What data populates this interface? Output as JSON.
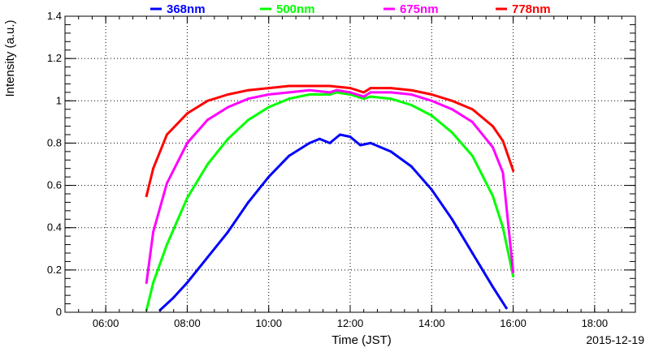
{
  "chart_data": {
    "type": "line",
    "title": "",
    "xlabel": "Time (JST)",
    "ylabel": "Intensity (a.u.)",
    "date_label": "2015-12-19",
    "xlim": [
      "05:00",
      "19:00"
    ],
    "ylim": [
      0,
      1.4
    ],
    "x_tick_labels": [
      "06:00",
      "08:00",
      "10:00",
      "12:00",
      "14:00",
      "16:00",
      "18:00"
    ],
    "y_tick_labels": [
      "0",
      "0.2",
      "0.4",
      "0.6",
      "0.8",
      "1",
      "1.2",
      "1.4"
    ],
    "grid": true,
    "grid_style": "dotted",
    "legend_position": "top",
    "series": [
      {
        "name": "368nm",
        "color": "#0000ff",
        "x": [
          "07:20",
          "07:40",
          "08:00",
          "08:30",
          "09:00",
          "09:30",
          "10:00",
          "10:30",
          "11:00",
          "11:15",
          "11:30",
          "11:45",
          "12:00",
          "12:15",
          "12:30",
          "13:00",
          "13:30",
          "14:00",
          "14:30",
          "15:00",
          "15:30",
          "15:50"
        ],
        "y": [
          0.01,
          0.07,
          0.14,
          0.26,
          0.38,
          0.52,
          0.64,
          0.74,
          0.8,
          0.82,
          0.8,
          0.84,
          0.83,
          0.79,
          0.8,
          0.76,
          0.69,
          0.58,
          0.44,
          0.28,
          0.12,
          0.02
        ]
      },
      {
        "name": "500nm",
        "color": "#00ff00",
        "x": [
          "07:00",
          "07:10",
          "07:30",
          "08:00",
          "08:30",
          "09:00",
          "09:30",
          "10:00",
          "10:30",
          "11:00",
          "11:30",
          "11:40",
          "12:00",
          "12:20",
          "12:30",
          "13:00",
          "13:30",
          "14:00",
          "14:30",
          "15:00",
          "15:30",
          "15:45",
          "16:00"
        ],
        "y": [
          0.01,
          0.14,
          0.32,
          0.54,
          0.7,
          0.82,
          0.91,
          0.97,
          1.01,
          1.03,
          1.03,
          1.04,
          1.03,
          1.01,
          1.02,
          1.01,
          0.98,
          0.93,
          0.85,
          0.74,
          0.55,
          0.4,
          0.17
        ]
      },
      {
        "name": "675nm",
        "color": "#ff00ff",
        "x": [
          "07:00",
          "07:10",
          "07:30",
          "08:00",
          "08:30",
          "09:00",
          "09:30",
          "10:00",
          "10:30",
          "11:00",
          "11:30",
          "11:40",
          "12:00",
          "12:20",
          "12:30",
          "13:00",
          "13:30",
          "14:00",
          "14:30",
          "15:00",
          "15:30",
          "15:45",
          "16:00"
        ],
        "y": [
          0.14,
          0.38,
          0.61,
          0.8,
          0.91,
          0.97,
          1.01,
          1.03,
          1.04,
          1.05,
          1.04,
          1.05,
          1.04,
          1.02,
          1.04,
          1.04,
          1.03,
          1.0,
          0.96,
          0.9,
          0.78,
          0.66,
          0.19
        ]
      },
      {
        "name": "778nm",
        "color": "#ff0000",
        "x": [
          "07:00",
          "07:10",
          "07:30",
          "08:00",
          "08:30",
          "09:00",
          "09:30",
          "10:00",
          "10:30",
          "11:00",
          "11:30",
          "12:00",
          "12:20",
          "12:30",
          "13:00",
          "13:30",
          "14:00",
          "14:30",
          "15:00",
          "15:30",
          "15:45",
          "16:00"
        ],
        "y": [
          0.55,
          0.68,
          0.84,
          0.94,
          1.0,
          1.03,
          1.05,
          1.06,
          1.07,
          1.07,
          1.07,
          1.06,
          1.04,
          1.06,
          1.06,
          1.05,
          1.03,
          1.0,
          0.96,
          0.88,
          0.81,
          0.67
        ]
      }
    ]
  }
}
